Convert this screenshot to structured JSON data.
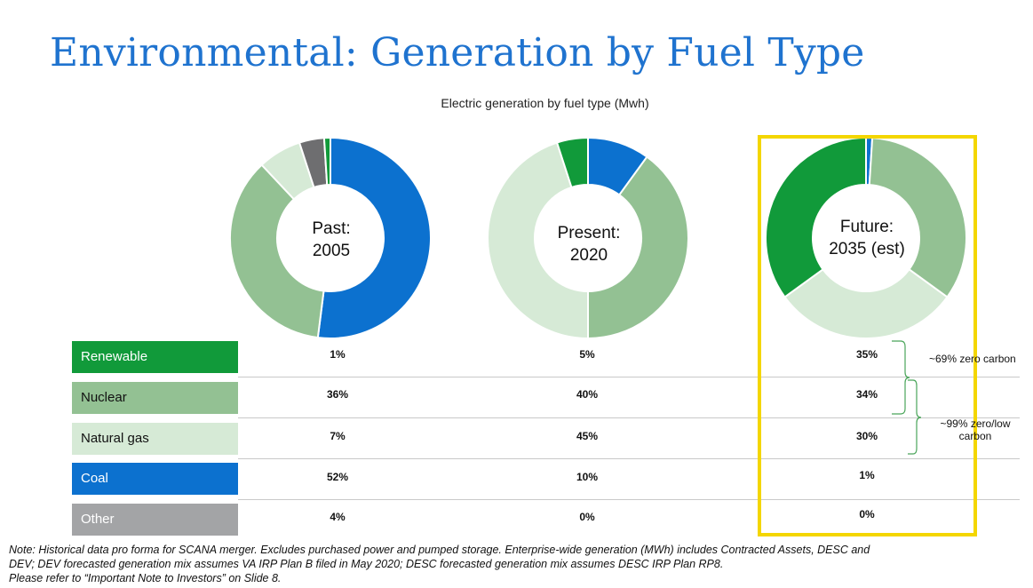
{
  "title": "Environmental: Generation by Fuel Type",
  "subtitle": "Electric generation by fuel type (Mwh)",
  "chart_data": {
    "type": "pie",
    "title": "Electric generation by fuel type (Mwh)",
    "categories": [
      "Renewable",
      "Nuclear",
      "Natural gas",
      "Coal",
      "Other"
    ],
    "colors": {
      "Renewable": "#119a3a",
      "Nuclear": "#93c193",
      "Natural gas": "#d6ead6",
      "Coal": "#0c71cf",
      "Other": "#6e6e70"
    },
    "charts": [
      {
        "label_line1": "Past:",
        "label_line2": "2005",
        "values": [
          1,
          36,
          7,
          52,
          4
        ],
        "labels": [
          "1%",
          "36%",
          "7%",
          "52%",
          "4%"
        ]
      },
      {
        "label_line1": "Present:",
        "label_line2": "2020",
        "values": [
          5,
          40,
          45,
          10,
          0
        ],
        "labels": [
          "5%",
          "40%",
          "45%",
          "10%",
          "0%"
        ]
      },
      {
        "label_line1": "Future:",
        "label_line2": "2035 (est)",
        "values": [
          35,
          34,
          30,
          1,
          0
        ],
        "labels": [
          "35%",
          "34%",
          "30%",
          "1%",
          "0%"
        ]
      }
    ]
  },
  "legend": [
    {
      "label": "Renewable",
      "bg": "#119a3a",
      "fg": "#ffffff"
    },
    {
      "label": "Nuclear",
      "bg": "#93c193",
      "fg": "#111111"
    },
    {
      "label": "Natural gas",
      "bg": "#d6ead6",
      "fg": "#111111"
    },
    {
      "label": "Coal",
      "bg": "#0c71cf",
      "fg": "#ffffff"
    },
    {
      "label": "Other",
      "bg": "#a3a4a6",
      "fg": "#ffffff"
    }
  ],
  "annotations": {
    "zero_carbon": "~69% zero carbon",
    "low_carbon_line1": "~99% zero/low",
    "low_carbon_line2": "carbon"
  },
  "highlight_color": "#f4d600",
  "note": {
    "line1": "Note: Historical data pro forma for SCANA merger. Excludes purchased power and pumped storage. Enterprise-wide generation (MWh) includes Contracted Assets, DESC and",
    "line2": "DEV; DEV forecasted generation mix assumes VA IRP Plan B filed in May 2020; DESC forecasted generation mix assumes DESC IRP Plan RP8.",
    "line3": "Please refer to “Important Note to Investors” on Slide 8."
  }
}
